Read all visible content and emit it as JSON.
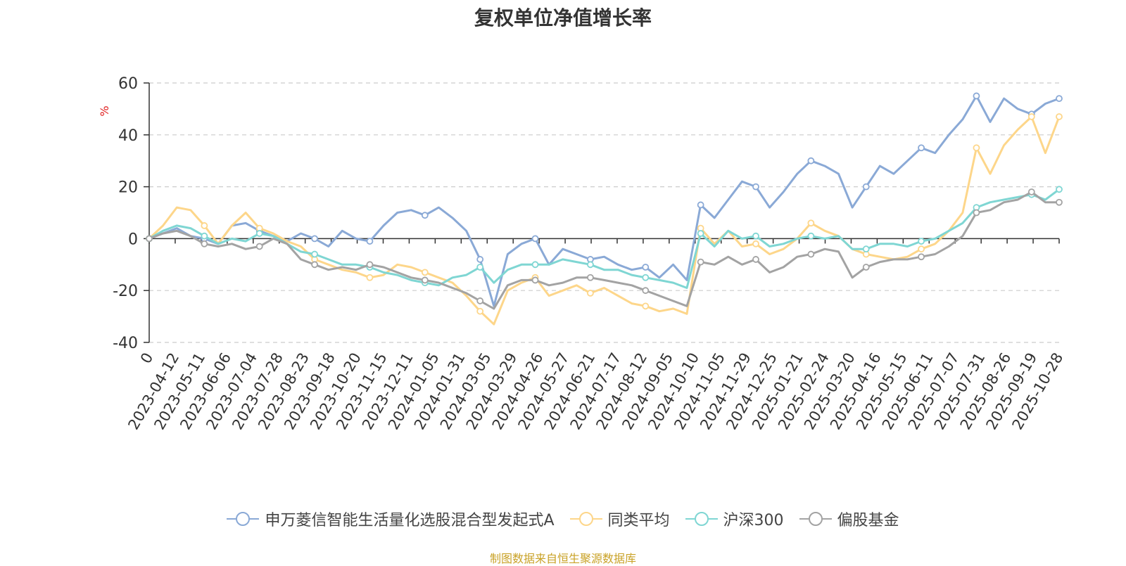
{
  "chart_data": {
    "type": "line",
    "title": "复权单位净值增长率",
    "ylabel": "%",
    "ylim": [
      -40,
      60
    ],
    "yticks": [
      60,
      40,
      20,
      0,
      -20,
      -40
    ],
    "grid": true,
    "legend_position": "bottom",
    "x_tick_labels": [
      "0",
      "2023-04-12",
      "2023-05-11",
      "2023-06-06",
      "2023-07-04",
      "2023-07-28",
      "2023-08-23",
      "2023-09-18",
      "2023-10-20",
      "2023-11-15",
      "2023-12-11",
      "2024-01-05",
      "2024-01-31",
      "2024-03-05",
      "2024-03-29",
      "2024-04-26",
      "2024-05-27",
      "2024-06-21",
      "2024-07-17",
      "2024-08-12",
      "2024-09-05",
      "2024-10-10",
      "2024-11-05",
      "2024-11-29",
      "2024-12-25",
      "2025-01-21",
      "2025-02-24",
      "2025-03-20",
      "2025-04-16",
      "2025-05-15",
      "2025-06-11",
      "2025-07-07",
      "2025-07-31",
      "2025-08-26",
      "2025-09-19",
      "2025-10-28"
    ],
    "series": [
      {
        "name": "申万菱信智能生活量化选股混合型发起式A",
        "color": "#8aa9d6",
        "values": [
          0,
          2,
          4,
          1,
          0,
          -2,
          5,
          6,
          3,
          1,
          -1,
          2,
          0,
          -3,
          3,
          0,
          -1,
          5,
          10,
          11,
          9,
          12,
          8,
          3,
          -8,
          -26,
          -6,
          -2,
          0,
          -10,
          -4,
          -6,
          -8,
          -7,
          -10,
          -12,
          -11,
          -15,
          -10,
          -16,
          13,
          8,
          15,
          22,
          20,
          12,
          18,
          25,
          30,
          28,
          25,
          12,
          20,
          28,
          25,
          30,
          35,
          33,
          40,
          46,
          55,
          45,
          54,
          50,
          48,
          52,
          54
        ]
      },
      {
        "name": "同类平均",
        "color": "#fdd68a",
        "values": [
          0,
          5,
          12,
          11,
          5,
          -2,
          5,
          10,
          4,
          2,
          -1,
          -3,
          -8,
          -10,
          -12,
          -13,
          -15,
          -14,
          -10,
          -11,
          -13,
          -15,
          -17,
          -22,
          -28,
          -33,
          -20,
          -17,
          -15,
          -22,
          -20,
          -18,
          -21,
          -19,
          -22,
          -25,
          -26,
          -28,
          -27,
          -29,
          4,
          -2,
          3,
          -3,
          -2,
          -6,
          -4,
          0,
          6,
          3,
          1,
          -4,
          -6,
          -7,
          -8,
          -7,
          -4,
          -2,
          3,
          10,
          35,
          25,
          36,
          42,
          47,
          33,
          47
        ]
      },
      {
        "name": "沪深300",
        "color": "#7fd6d3",
        "values": [
          0,
          3,
          5,
          4,
          1,
          -2,
          0,
          -1,
          2,
          1,
          -2,
          -5,
          -6,
          -8,
          -10,
          -10,
          -11,
          -13,
          -14,
          -16,
          -17,
          -18,
          -15,
          -14,
          -11,
          -17,
          -12,
          -10,
          -10,
          -10,
          -8,
          -9,
          -10,
          -12,
          -12,
          -14,
          -15,
          -16,
          -17,
          -19,
          2,
          -3,
          3,
          0,
          1,
          -3,
          -2,
          0,
          1,
          0,
          1,
          -4,
          -4,
          -2,
          -2,
          -3,
          -1,
          0,
          3,
          6,
          12,
          14,
          15,
          16,
          17,
          15,
          19
        ]
      },
      {
        "name": "偏股基金",
        "color": "#a3a3a3",
        "values": [
          0,
          2,
          3,
          1,
          -2,
          -3,
          -2,
          -4,
          -3,
          0,
          -2,
          -8,
          -10,
          -12,
          -11,
          -12,
          -10,
          -11,
          -13,
          -15,
          -16,
          -17,
          -19,
          -21,
          -24,
          -27,
          -18,
          -16,
          -16,
          -18,
          -17,
          -15,
          -15,
          -16,
          -17,
          -18,
          -20,
          -22,
          -24,
          -26,
          -9,
          -10,
          -7,
          -10,
          -8,
          -13,
          -11,
          -7,
          -6,
          -4,
          -5,
          -15,
          -11,
          -9,
          -8,
          -8,
          -7,
          -6,
          -3,
          1,
          10,
          11,
          14,
          15,
          18,
          14,
          14
        ]
      }
    ]
  },
  "legend": {
    "items": [
      "申万菱信智能生活量化选股混合型发起式A",
      "同类平均",
      "沪深300",
      "偏股基金"
    ]
  },
  "source_note": "制图数据来自恒生聚源数据库"
}
